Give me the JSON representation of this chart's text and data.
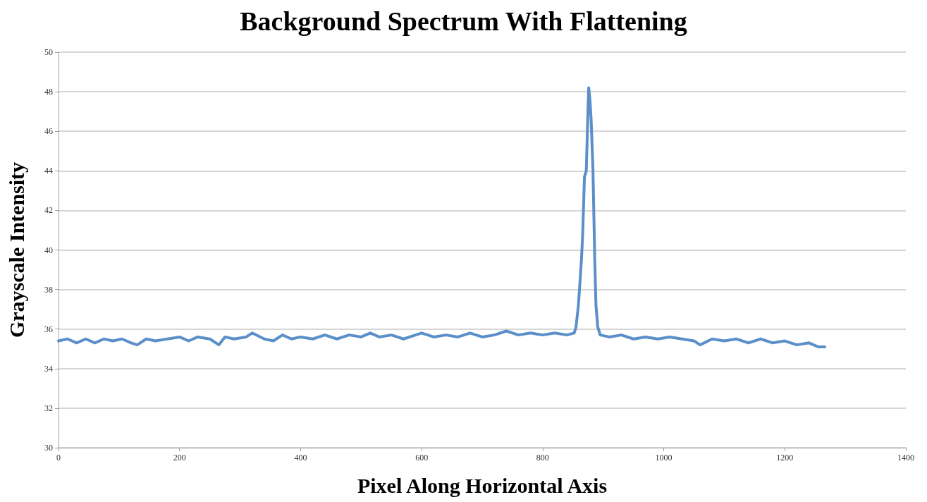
{
  "chart_data": {
    "type": "line",
    "title": "Background Spectrum With Flattening",
    "xlabel": "Pixel Along Horizontal Axis",
    "ylabel": "Grayscale Intensity",
    "series": [
      {
        "color": "#5b8fc9",
        "x": [
          0,
          15,
          30,
          45,
          60,
          75,
          90,
          105,
          120,
          130,
          145,
          160,
          180,
          200,
          215,
          230,
          250,
          265,
          275,
          290,
          310,
          320,
          340,
          355,
          370,
          385,
          400,
          420,
          440,
          460,
          480,
          500,
          515,
          530,
          550,
          570,
          590,
          600,
          620,
          640,
          660,
          680,
          700,
          720,
          740,
          760,
          780,
          800,
          820,
          840,
          852,
          855,
          859,
          864,
          866,
          869,
          872,
          875,
          876,
          878,
          880,
          883,
          886,
          888,
          891,
          895,
          910,
          930,
          950,
          970,
          990,
          1010,
          1030,
          1050,
          1060,
          1080,
          1100,
          1120,
          1140,
          1160,
          1180,
          1200,
          1220,
          1240,
          1255,
          1266
        ],
        "values": [
          35.4,
          35.5,
          35.3,
          35.5,
          35.3,
          35.5,
          35.4,
          35.5,
          35.3,
          35.2,
          35.5,
          35.4,
          35.5,
          35.6,
          35.4,
          35.6,
          35.5,
          35.2,
          35.6,
          35.5,
          35.6,
          35.8,
          35.5,
          35.4,
          35.7,
          35.5,
          35.6,
          35.5,
          35.7,
          35.5,
          35.7,
          35.6,
          35.8,
          35.6,
          35.7,
          35.5,
          35.7,
          35.8,
          35.6,
          35.7,
          35.6,
          35.8,
          35.6,
          35.7,
          35.9,
          35.7,
          35.8,
          35.7,
          35.8,
          35.7,
          35.8,
          36.1,
          37.2,
          39.5,
          40.75,
          43.7,
          44.0,
          47.3,
          48.2,
          47.6,
          46.6,
          44.1,
          39.5,
          37.2,
          36.1,
          35.7,
          35.6,
          35.7,
          35.5,
          35.6,
          35.5,
          35.6,
          35.5,
          35.4,
          35.2,
          35.5,
          35.4,
          35.5,
          35.3,
          35.5,
          35.3,
          35.4,
          35.2,
          35.3,
          35.1,
          35.1
        ]
      }
    ],
    "xlim": [
      0,
      1400
    ],
    "xticks": [
      0,
      200,
      400,
      600,
      800,
      1000,
      1200,
      1400
    ],
    "ylim": [
      30,
      50
    ],
    "yticks": [
      30,
      32,
      34,
      36,
      38,
      40,
      42,
      44,
      46,
      48,
      50
    ],
    "grid": "y",
    "marker": "none",
    "line_style": "solid"
  }
}
